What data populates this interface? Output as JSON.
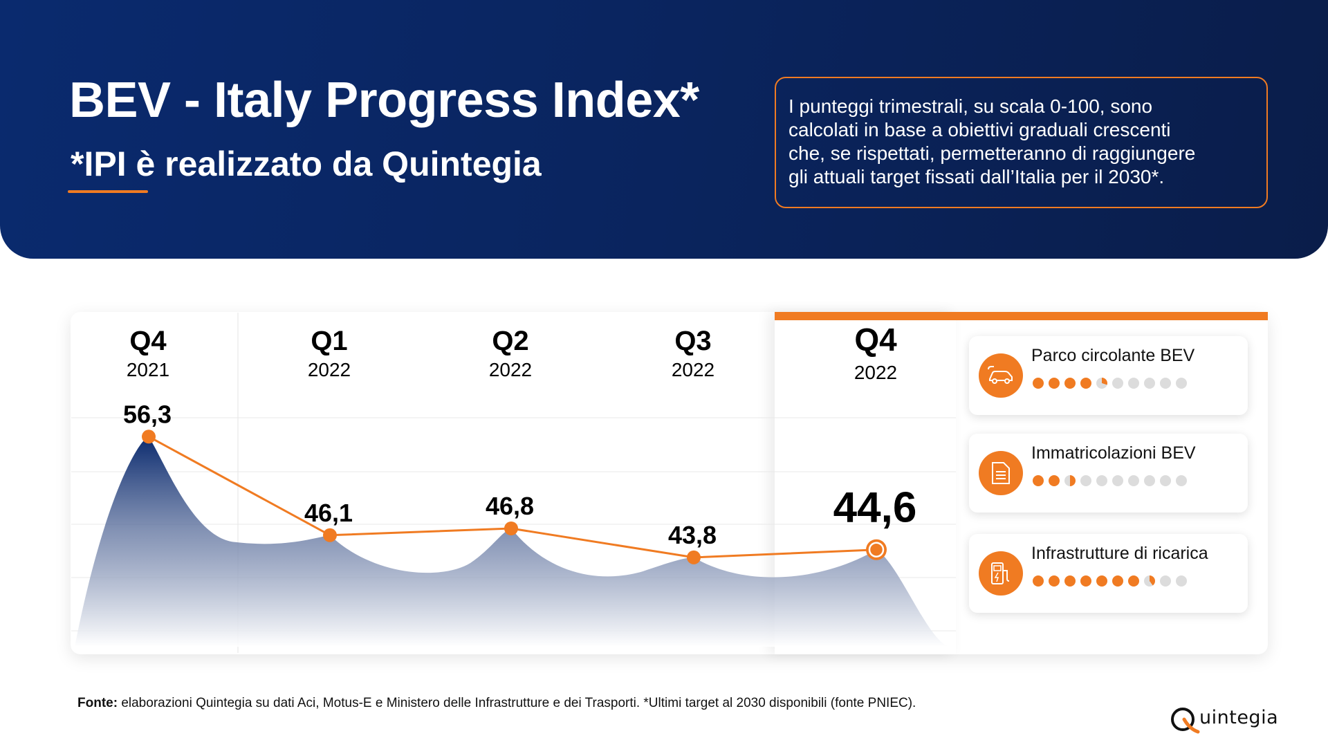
{
  "header": {
    "title": "BEV - Italy Progress Index*",
    "subtitle": "*IPI è realizzato da Quintegia",
    "info_lines": [
      "I punteggi trimestrali, su scala 0-100, sono",
      "calcolati in base a obiettivi graduali crescenti",
      "che, se rispettati, permetteranno di raggiungere",
      "gli attuali target fissati dall’Italia per il 2030*."
    ]
  },
  "chart_data": {
    "type": "line",
    "title": "BEV - Italy Progress Index",
    "categories": [
      "Q4 2021",
      "Q1 2022",
      "Q2 2022",
      "Q3 2022",
      "Q4 2022"
    ],
    "quarters": [
      "Q4",
      "Q1",
      "Q2",
      "Q3",
      "Q4"
    ],
    "years": [
      "2021",
      "2022",
      "2022",
      "2022",
      "2022"
    ],
    "values": [
      56.3,
      46.1,
      46.8,
      43.8,
      44.6
    ],
    "value_labels": [
      "56,3",
      "46,1",
      "46,8",
      "43,8",
      "44,6"
    ],
    "highlight_index": 4,
    "ylim": [
      40,
      58
    ],
    "grid": true
  },
  "indicators": [
    {
      "label": "Parco circolante BEV",
      "icon": "car-charging-icon",
      "score": 4.3,
      "max": 10
    },
    {
      "label": "Immatricolazioni BEV",
      "icon": "document-icon",
      "score": 2.5,
      "max": 10
    },
    {
      "label": "Infrastrutture di ricarica",
      "icon": "charging-station-icon",
      "score": 7.4,
      "max": 10
    }
  ],
  "footer": {
    "source_bold": "Fonte:",
    "source_text": " elaborazioni Quintegia su dati Aci, Motus-E e Ministero delle Infrastrutture e dei Trasporti. *Ultimi target al 2030 disponibili (fonte PNIEC).",
    "logo_text": "uintegia",
    "logo_letter": "Q"
  },
  "colors": {
    "accent": "#f07b22",
    "navy": "#0a2a6e"
  }
}
